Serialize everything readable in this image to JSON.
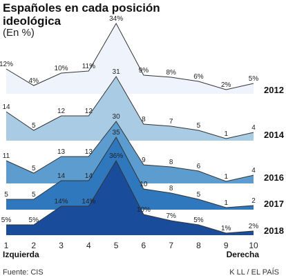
{
  "title": "Españoles en cada posición ideológica",
  "subtitle": "(En %)",
  "source": "Fuente: CIS",
  "credit": "K LL / EL PAÍS",
  "chart_data": {
    "type": "area",
    "x": [
      1,
      2,
      3,
      4,
      5,
      6,
      7,
      8,
      9,
      10
    ],
    "xlabel_left": "Izquierda",
    "xlabel_right": "Derecha",
    "grid": false,
    "series": [
      {
        "name": "2012",
        "values": [
          12,
          4,
          10,
          11,
          34,
          9,
          8,
          6,
          2,
          5
        ],
        "labels": [
          "12%",
          "4%",
          "10%",
          "11%",
          "34%",
          "9%",
          "8%",
          "6%",
          "2%",
          "5%"
        ],
        "color": "#eef3fc"
      },
      {
        "name": "2014",
        "values": [
          14,
          5,
          12,
          12,
          31,
          8,
          7,
          5,
          1,
          4
        ],
        "labels": [
          "14",
          "5",
          "12",
          "12",
          "31",
          "8",
          "7",
          "5",
          "1",
          "4"
        ],
        "color": "#a9cbe4"
      },
      {
        "name": "2016",
        "values": [
          11,
          5,
          13,
          13,
          30,
          9,
          8,
          6,
          1,
          4
        ],
        "labels": [
          "11",
          "5",
          "13",
          "13",
          "30",
          "9",
          "8",
          "6",
          "1",
          "4"
        ],
        "color": "#5c9ccf"
      },
      {
        "name": "2017",
        "values": [
          5,
          5,
          14,
          14,
          35,
          10,
          8,
          5,
          1,
          2
        ],
        "labels": [
          "5",
          "5",
          "14",
          "14",
          "35",
          "10",
          "8",
          "5",
          "1",
          "2"
        ],
        "color": "#3078bd"
      },
      {
        "name": "2018",
        "values": [
          5,
          5,
          14,
          14,
          36,
          10,
          7,
          5,
          1,
          2
        ],
        "labels": [
          "5%",
          "5%",
          "14%",
          "14%",
          "36%",
          "10%",
          "7%",
          "5%",
          "1%",
          "2%"
        ],
        "color": "#1a4c9c"
      }
    ]
  }
}
